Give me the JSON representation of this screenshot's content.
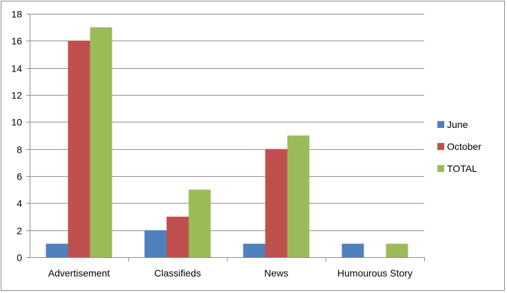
{
  "chart_data": {
    "type": "bar",
    "title": "",
    "xlabel": "",
    "ylabel": "",
    "categories": [
      "Advertisement",
      "Classifieds",
      "News",
      "Humourous Story"
    ],
    "series": [
      {
        "name": "June",
        "color": "#4f81bd",
        "values": [
          1,
          2,
          1,
          1
        ]
      },
      {
        "name": "October",
        "color": "#c0504d",
        "values": [
          16,
          3,
          8,
          0
        ]
      },
      {
        "name": "TOTAL",
        "color": "#9bbb59",
        "values": [
          17,
          5,
          9,
          1
        ]
      }
    ],
    "ylim": [
      0,
      18
    ],
    "yticks": [
      0,
      2,
      4,
      6,
      8,
      10,
      12,
      14,
      16,
      18
    ],
    "grid": true,
    "legend_position": "right"
  }
}
